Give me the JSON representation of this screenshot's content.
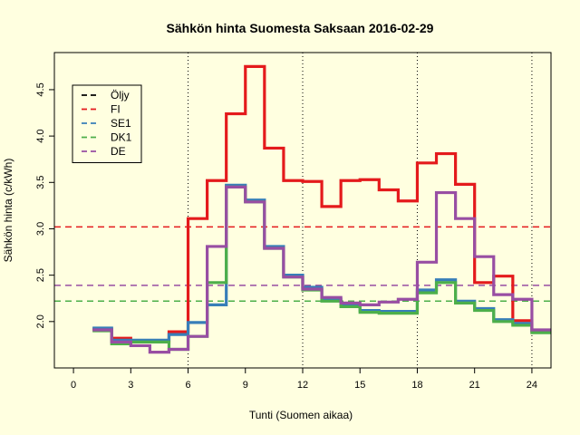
{
  "chart_data": {
    "type": "line",
    "title": "Sähkön hinta Suomesta Saksaan 2016-02-29",
    "xlabel": "Tunti (Suomen aikaa)",
    "ylabel": "Sähkön hinta (c/kWh)",
    "xlim": [
      -1,
      25
    ],
    "ylim": [
      1.5,
      4.9
    ],
    "x_ticks": [
      0,
      3,
      6,
      9,
      12,
      15,
      18,
      21,
      24
    ],
    "y_ticks": [
      2.0,
      2.5,
      3.0,
      3.5,
      4.0,
      4.5
    ],
    "y_tick_labels": [
      "2.0",
      "2.5",
      "3.0",
      "3.5",
      "4.0",
      "4.5"
    ],
    "vertical_guides": [
      6,
      12,
      18,
      24
    ],
    "legend_position": "top-left",
    "step_style": "step",
    "hours": [
      1,
      2,
      3,
      4,
      5,
      6,
      7,
      8,
      9,
      10,
      11,
      12,
      13,
      14,
      15,
      16,
      17,
      18,
      19,
      20,
      21,
      22,
      23,
      24
    ],
    "series": [
      {
        "name": "Öljy",
        "color": "#000000",
        "values": []
      },
      {
        "name": "FI",
        "color": "#E41A1C",
        "average": 3.02,
        "values": [
          1.92,
          1.82,
          1.79,
          1.78,
          1.89,
          3.11,
          3.52,
          4.24,
          4.75,
          3.87,
          3.52,
          3.51,
          3.24,
          3.52,
          3.53,
          3.42,
          3.3,
          3.71,
          3.81,
          3.48,
          2.42,
          2.49,
          2.01,
          1.89
        ]
      },
      {
        "name": "SE1",
        "color": "#377EB8",
        "average": 2.22,
        "values": [
          1.93,
          1.8,
          1.8,
          1.8,
          1.86,
          1.99,
          2.18,
          3.47,
          3.31,
          2.81,
          2.5,
          2.37,
          2.24,
          2.18,
          2.12,
          2.11,
          2.11,
          2.34,
          2.45,
          2.22,
          2.14,
          2.02,
          1.98,
          1.9
        ]
      },
      {
        "name": "DK1",
        "color": "#4DAF4A",
        "average": 2.22,
        "values": [
          1.9,
          1.76,
          1.78,
          1.78,
          1.7,
          1.84,
          2.42,
          3.45,
          3.29,
          2.79,
          2.48,
          2.34,
          2.22,
          2.16,
          2.1,
          2.09,
          2.09,
          2.31,
          2.42,
          2.2,
          2.12,
          2.0,
          1.96,
          1.88
        ]
      },
      {
        "name": "DE",
        "color": "#984EA3",
        "average": 2.39,
        "values": [
          1.91,
          1.78,
          1.74,
          1.67,
          1.7,
          1.84,
          2.81,
          3.45,
          3.29,
          2.79,
          2.48,
          2.35,
          2.26,
          2.2,
          2.18,
          2.21,
          2.24,
          2.64,
          3.39,
          3.11,
          2.7,
          2.29,
          2.24,
          1.91
        ]
      }
    ]
  }
}
